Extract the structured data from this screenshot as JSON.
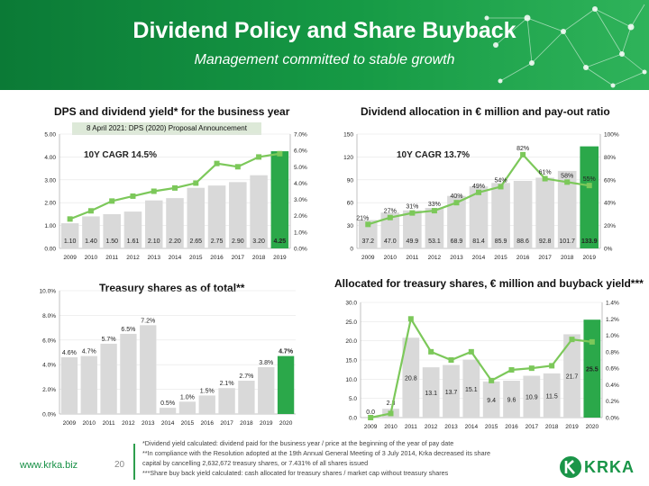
{
  "header": {
    "title": "Dividend Policy and Share Buyback",
    "subtitle": "Management committed to stable growth"
  },
  "colors": {
    "bar": "#d9d9d9",
    "highlight": "#2ba84a",
    "line": "#7cc85a",
    "brand": "#179046"
  },
  "footer": {
    "url": "www.krka.biz",
    "page": "20",
    "logo": "KRKA",
    "footnotes": [
      "*Dividend yield calculated: dividend paid for the business year / price at the beginning of the year of pay date",
      "**In compliance with the Resolution adopted at the 19th Annual General Meeting of 3 July 2014, Krka decreased its share",
      "capital by cancelling 2,632,672 treasury shares, or 7.431% of all shares issued",
      "***Share buy back yield calculated: cash allocated for treasury shares / market cap without treasury shares"
    ]
  },
  "chart_data": [
    {
      "id": "dps",
      "type": "bar",
      "title": "DPS and dividend yield* for the business year",
      "annotation": "8 April 2021: DPS (2020) Proposal Announcement",
      "cagr_label": "10Y CAGR 14.5%",
      "categories": [
        "2009",
        "2010",
        "2011",
        "2012",
        "2013",
        "2014",
        "2015",
        "2016",
        "2017",
        "2018",
        "2019"
      ],
      "y_ticks": [
        "0.00",
        "1.00",
        "2.00",
        "3.00",
        "4.00",
        "5.00"
      ],
      "y2_ticks": [
        "0.0%",
        "1.0%",
        "2.0%",
        "3.0%",
        "4.0%",
        "5.0%",
        "6.0%",
        "7.0%"
      ],
      "ylim": [
        0,
        5
      ],
      "y2lim": [
        0,
        7
      ],
      "series": [
        {
          "values": [
            1.1,
            1.4,
            1.5,
            1.61,
            2.1,
            2.2,
            2.65,
            2.75,
            2.9,
            3.2,
            4.25
          ],
          "labels": [
            "1.10",
            "1.40",
            "1.50",
            "1.61",
            "2.10",
            "2.20",
            "2.65",
            "2.75",
            "2.90",
            "3.20",
            "4.25"
          ]
        },
        {
          "type": "line",
          "values": [
            1.8,
            2.3,
            2.9,
            3.2,
            3.5,
            3.7,
            4.0,
            5.2,
            5.0,
            5.6,
            5.8
          ]
        }
      ],
      "highlight_index": 10
    },
    {
      "id": "allocation",
      "type": "bar",
      "title": "Dividend allocation in € million and pay-out ratio",
      "cagr_label": "10Y CAGR 13.7%",
      "categories": [
        "2009",
        "2010",
        "2011",
        "2012",
        "2013",
        "2014",
        "2015",
        "2016",
        "2017",
        "2018",
        "2019"
      ],
      "y_ticks": [
        "0",
        "30",
        "60",
        "90",
        "120",
        "150"
      ],
      "y2_ticks": [
        "0%",
        "20%",
        "40%",
        "60%",
        "80%",
        "100%"
      ],
      "ylim": [
        0,
        150
      ],
      "y2lim": [
        0,
        100
      ],
      "series": [
        {
          "values": [
            37.2,
            47.0,
            49.9,
            53.1,
            68.9,
            81.4,
            85.9,
            88.6,
            92.8,
            101.7,
            133.9
          ],
          "labels": [
            "37.2",
            "47.0",
            "49.9",
            "53.1",
            "68.9",
            "81.4",
            "85.9",
            "88.6",
            "92.8",
            "101.7",
            "133.9"
          ]
        },
        {
          "type": "line",
          "values": [
            21,
            27,
            31,
            33,
            40,
            49,
            54,
            82,
            61,
            58,
            55
          ],
          "labels": [
            "21%",
            "27%",
            "31%",
            "33%",
            "40%",
            "49%",
            "54%",
            "82%",
            "61%",
            "58%",
            "55%"
          ]
        }
      ],
      "highlight_index": 10
    },
    {
      "id": "treasury",
      "type": "bar",
      "title": "Treasury shares as of total**",
      "categories": [
        "2009",
        "2010",
        "2011",
        "2012",
        "2013",
        "2014",
        "2015",
        "2016",
        "2017",
        "2018",
        "2019",
        "2020"
      ],
      "y_ticks": [
        "0.0%",
        "2.0%",
        "4.0%",
        "6.0%",
        "8.0%",
        "10.0%"
      ],
      "ylim": [
        0,
        10
      ],
      "series": [
        {
          "values": [
            4.6,
            4.7,
            5.7,
            6.5,
            7.2,
            0.5,
            1.0,
            1.5,
            2.1,
            2.7,
            3.8,
            4.7
          ],
          "labels": [
            "4.6%",
            "4.7%",
            "5.7%",
            "6.5%",
            "7.2%",
            "0.5%",
            "1.0%",
            "1.5%",
            "2.1%",
            "2.7%",
            "3.8%",
            "4.7%"
          ]
        }
      ],
      "highlight_index": 11
    },
    {
      "id": "buyback",
      "type": "bar",
      "title": "Allocated for treasury shares, € million and buyback yield***",
      "categories": [
        "2009",
        "2010",
        "2011",
        "2012",
        "2013",
        "2014",
        "2015",
        "2016",
        "2017",
        "2018",
        "2019",
        "2020"
      ],
      "y_ticks": [
        "0.0",
        "5.0",
        "10.0",
        "15.0",
        "20.0",
        "25.0",
        "30.0"
      ],
      "y2_ticks": [
        "0.0%",
        "0.2%",
        "0.4%",
        "0.6%",
        "0.8%",
        "1.0%",
        "1.2%",
        "1.4%"
      ],
      "ylim": [
        0,
        30
      ],
      "y2lim": [
        0,
        1.4
      ],
      "series": [
        {
          "values": [
            0.0,
            2.3,
            20.8,
            13.1,
            13.7,
            15.1,
            9.4,
            9.6,
            10.9,
            11.5,
            21.7,
            25.5
          ],
          "labels": [
            "0.0",
            "2.3",
            "20.8",
            "13.1",
            "13.7",
            "15.1",
            "9.4",
            "9.6",
            "10.9",
            "11.5",
            "21.7",
            "25.5"
          ]
        },
        {
          "type": "line",
          "values": [
            0.0,
            0.05,
            1.2,
            0.8,
            0.7,
            0.8,
            0.45,
            0.58,
            0.6,
            0.63,
            0.95,
            0.92
          ]
        }
      ],
      "highlight_index": 11
    }
  ]
}
